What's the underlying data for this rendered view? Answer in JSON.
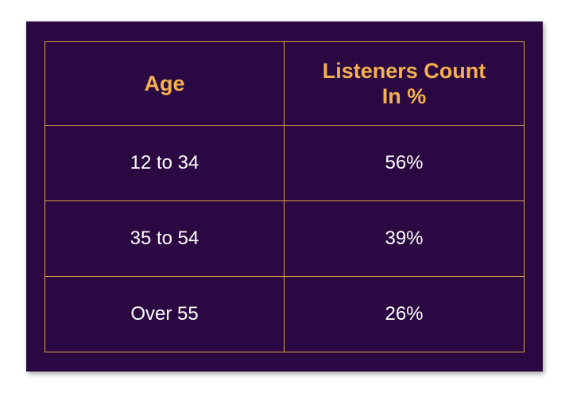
{
  "colors": {
    "background": "#2b0841",
    "header_text": "#f4b24f",
    "cell_text": "#ffffff",
    "border": "#d9a24a"
  },
  "chart_data": {
    "type": "table",
    "columns": [
      "Age",
      "Listeners Count In %"
    ],
    "rows": [
      [
        "12 to 34",
        "56%"
      ],
      [
        "35 to 54",
        "39%"
      ],
      [
        "Over 55",
        "26%"
      ]
    ]
  },
  "table": {
    "headers": {
      "age": "Age",
      "listeners_line1": "Listeners Count",
      "listeners_line2": "In %"
    },
    "rows": [
      {
        "age": "12 to 34",
        "pct": "56%"
      },
      {
        "age": "35 to 54",
        "pct": "39%"
      },
      {
        "age": "Over 55",
        "pct": "26%"
      }
    ]
  }
}
